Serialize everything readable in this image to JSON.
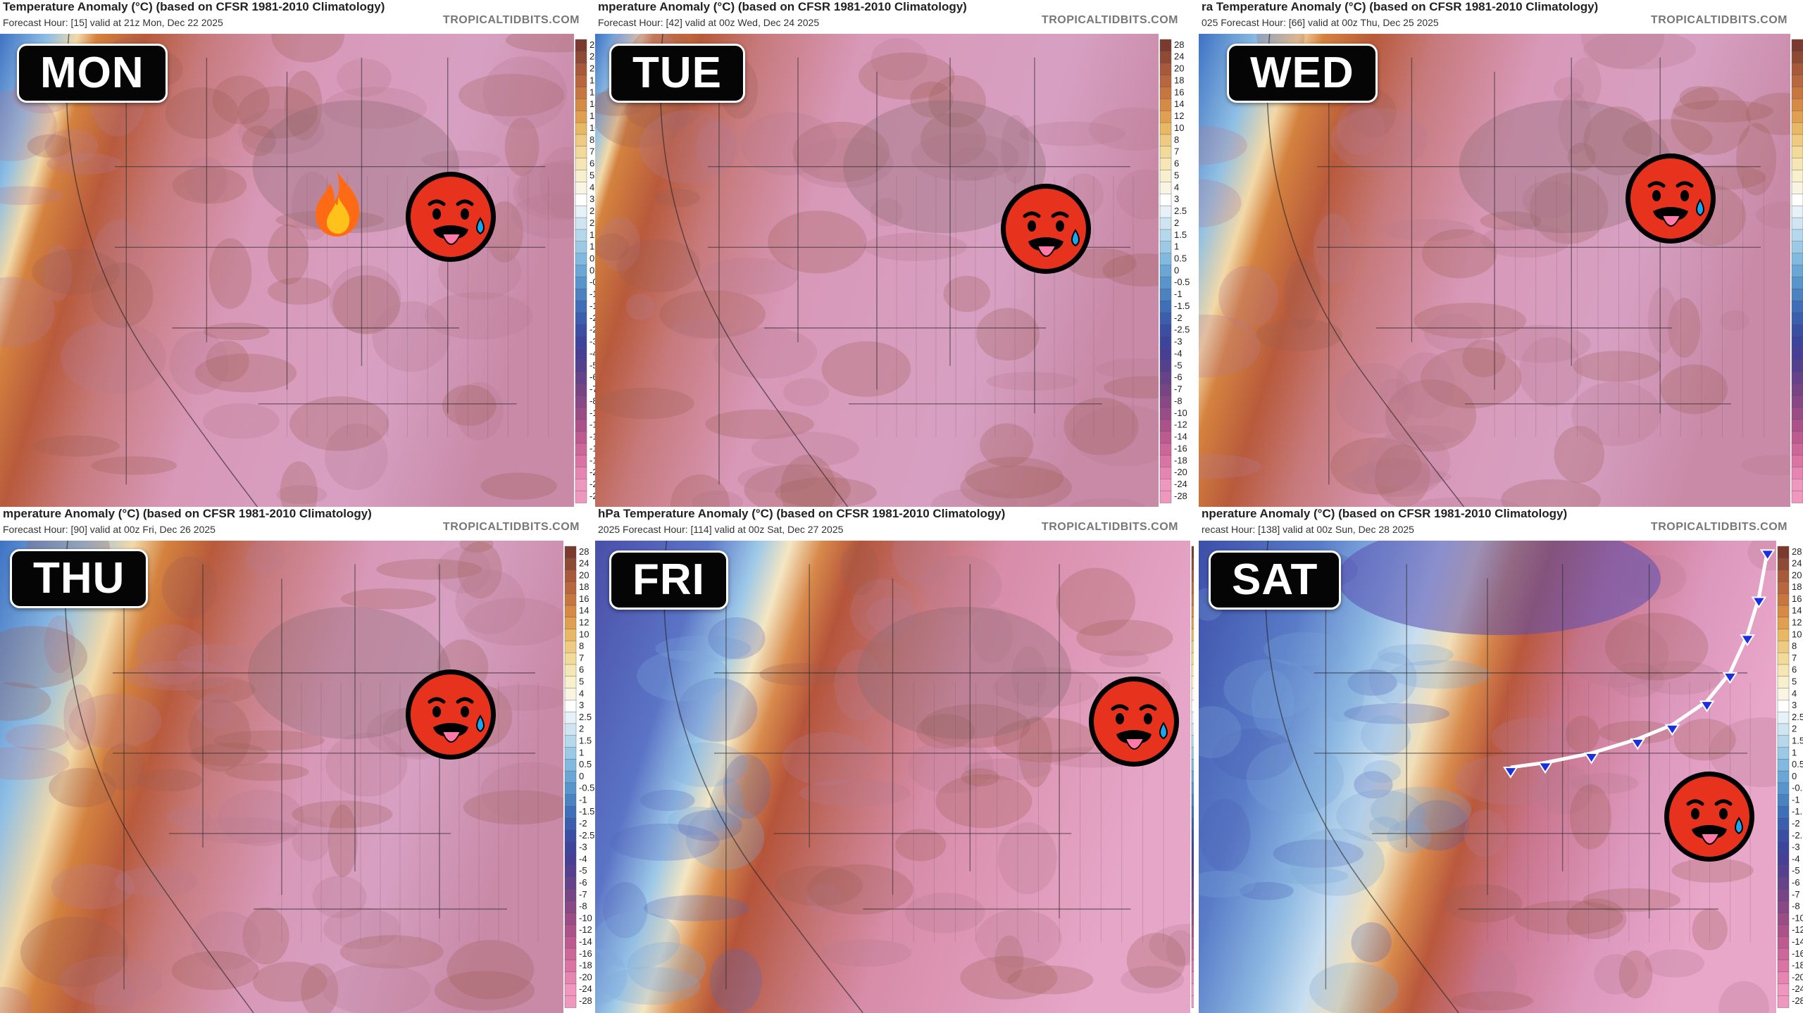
{
  "panels": [
    {
      "day": "MON",
      "title": "Temperature Anomaly (°C) (based on CFSR 1981-2010 Climatology)",
      "subtitle": "Forecast Hour: [15]   valid at 21z Mon, Dec 22 2025",
      "brand": "TROPICALTIDBITS.COM"
    },
    {
      "day": "TUE",
      "title": "mperature Anomaly (°C) (based on CFSR 1981-2010 Climatology)",
      "subtitle": "Forecast Hour: [42]   valid at 00z Wed, Dec 24 2025",
      "brand": "TROPICALTIDBITS.COM"
    },
    {
      "day": "WED",
      "title": "ra Temperature Anomaly (°C) (based on CFSR 1981-2010 Climatology)",
      "subtitle": "025   Forecast Hour: [66]   valid at 00z Thu, Dec 25 2025",
      "brand": "TROPICALTIDBITS.COM"
    },
    {
      "day": "THU",
      "title": "mperature Anomaly (°C) (based on CFSR 1981-2010 Climatology)",
      "subtitle": "Forecast Hour: [90]   valid at 00z Fri, Dec 26 2025",
      "brand": "TROPICALTIDBITS.COM"
    },
    {
      "day": "FRI",
      "title": "hPa Temperature Anomaly (°C) (based on CFSR 1981-2010 Climatology)",
      "subtitle": "2025   Forecast Hour: [114]   valid at 00z Sat, Dec 27 2025",
      "brand": "TROPICALTIDBITS.COM"
    },
    {
      "day": "SAT",
      "title": "nperature Anomaly (°C) (based on CFSR 1981-2010 Climatology)",
      "subtitle": "recast Hour: [138]   valid at 00z Sun, Dec 28 2025",
      "brand": "TROPICALTIDBITS.COM"
    }
  ],
  "scale_ticks": [
    "28",
    "24",
    "20",
    "18",
    "16",
    "14",
    "12",
    "10",
    "8",
    "7",
    "6",
    "5",
    "4",
    "3",
    "2.5",
    "2",
    "1.5",
    "1",
    "0.5",
    "0",
    "-0.5",
    "-1",
    "-1.5",
    "-2",
    "-2.5",
    "-3",
    "-4",
    "-5",
    "-6",
    "-7",
    "-8",
    "-10",
    "-12",
    "-14",
    "-16",
    "-18",
    "-20",
    "-24",
    "-28"
  ],
  "icons": {
    "face": "hot-face-icon",
    "fire": "fire-icon",
    "front": "cold-front-icon"
  }
}
